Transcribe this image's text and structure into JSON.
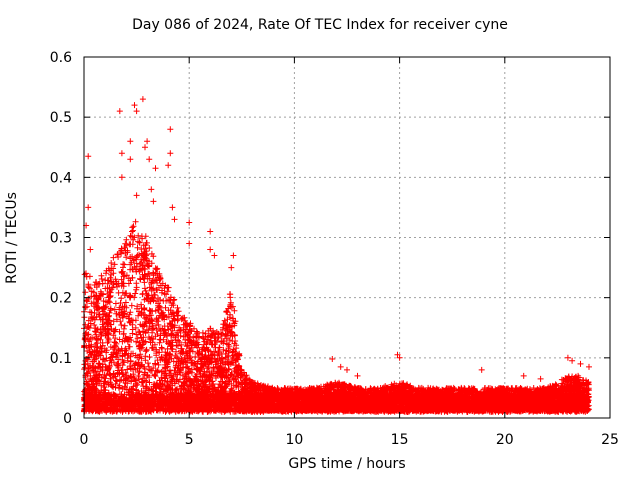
{
  "chart_data": {
    "type": "scatter",
    "title": "Day 086 of 2024, Rate Of TEC Index for receiver cyne",
    "xlabel": "GPS time / hours",
    "ylabel": "ROTI / TECUs",
    "xlim": [
      0,
      25
    ],
    "ylim": [
      0,
      0.6
    ],
    "xticks": [
      "0",
      "5",
      "10",
      "15",
      "20",
      "25"
    ],
    "yticks": [
      "0",
      "0.1",
      "0.2",
      "0.3",
      "0.4",
      "0.5",
      "0.6"
    ],
    "grid": true,
    "marker": "+",
    "series_color": "#ff0000",
    "x_coverage": [
      0,
      24
    ],
    "envelope": [
      [
        0.0,
        0.25
      ],
      [
        0.5,
        0.23
      ],
      [
        1.0,
        0.24
      ],
      [
        1.5,
        0.28
      ],
      [
        2.0,
        0.3
      ],
      [
        2.5,
        0.34
      ],
      [
        3.0,
        0.3
      ],
      [
        3.5,
        0.25
      ],
      [
        4.0,
        0.22
      ],
      [
        4.5,
        0.18
      ],
      [
        5.0,
        0.16
      ],
      [
        5.5,
        0.14
      ],
      [
        6.0,
        0.15
      ],
      [
        6.5,
        0.14
      ],
      [
        7.0,
        0.22
      ],
      [
        7.5,
        0.08
      ],
      [
        8.0,
        0.06
      ],
      [
        9.0,
        0.05
      ],
      [
        10.0,
        0.05
      ],
      [
        11.0,
        0.05
      ],
      [
        12.0,
        0.06
      ],
      [
        13.0,
        0.05
      ],
      [
        14.0,
        0.05
      ],
      [
        15.0,
        0.06
      ],
      [
        16.0,
        0.05
      ],
      [
        17.0,
        0.05
      ],
      [
        18.0,
        0.05
      ],
      [
        19.0,
        0.05
      ],
      [
        20.0,
        0.05
      ],
      [
        21.0,
        0.05
      ],
      [
        22.0,
        0.05
      ],
      [
        23.0,
        0.07
      ],
      [
        23.5,
        0.07
      ],
      [
        24.0,
        0.06
      ]
    ],
    "outliers": [
      [
        0.2,
        0.435
      ],
      [
        0.2,
        0.35
      ],
      [
        0.1,
        0.32
      ],
      [
        0.3,
        0.28
      ],
      [
        1.7,
        0.51
      ],
      [
        1.8,
        0.44
      ],
      [
        1.8,
        0.4
      ],
      [
        2.2,
        0.46
      ],
      [
        2.2,
        0.43
      ],
      [
        2.4,
        0.52
      ],
      [
        2.5,
        0.51
      ],
      [
        2.8,
        0.53
      ],
      [
        2.9,
        0.45
      ],
      [
        3.0,
        0.46
      ],
      [
        3.1,
        0.43
      ],
      [
        3.2,
        0.38
      ],
      [
        3.4,
        0.415
      ],
      [
        2.5,
        0.37
      ],
      [
        3.3,
        0.36
      ],
      [
        4.1,
        0.48
      ],
      [
        4.0,
        0.42
      ],
      [
        4.1,
        0.44
      ],
      [
        4.2,
        0.35
      ],
      [
        4.3,
        0.33
      ],
      [
        5.0,
        0.325
      ],
      [
        5.0,
        0.29
      ],
      [
        6.0,
        0.31
      ],
      [
        6.0,
        0.28
      ],
      [
        6.2,
        0.27
      ],
      [
        7.1,
        0.27
      ],
      [
        7.0,
        0.25
      ],
      [
        11.8,
        0.098
      ],
      [
        12.2,
        0.085
      ],
      [
        12.5,
        0.08
      ],
      [
        14.9,
        0.105
      ],
      [
        15.0,
        0.1
      ],
      [
        13.0,
        0.07
      ],
      [
        18.9,
        0.08
      ],
      [
        20.9,
        0.07
      ],
      [
        21.7,
        0.065
      ],
      [
        23.0,
        0.1
      ],
      [
        23.2,
        0.095
      ],
      [
        23.6,
        0.09
      ],
      [
        24.0,
        0.085
      ]
    ]
  }
}
